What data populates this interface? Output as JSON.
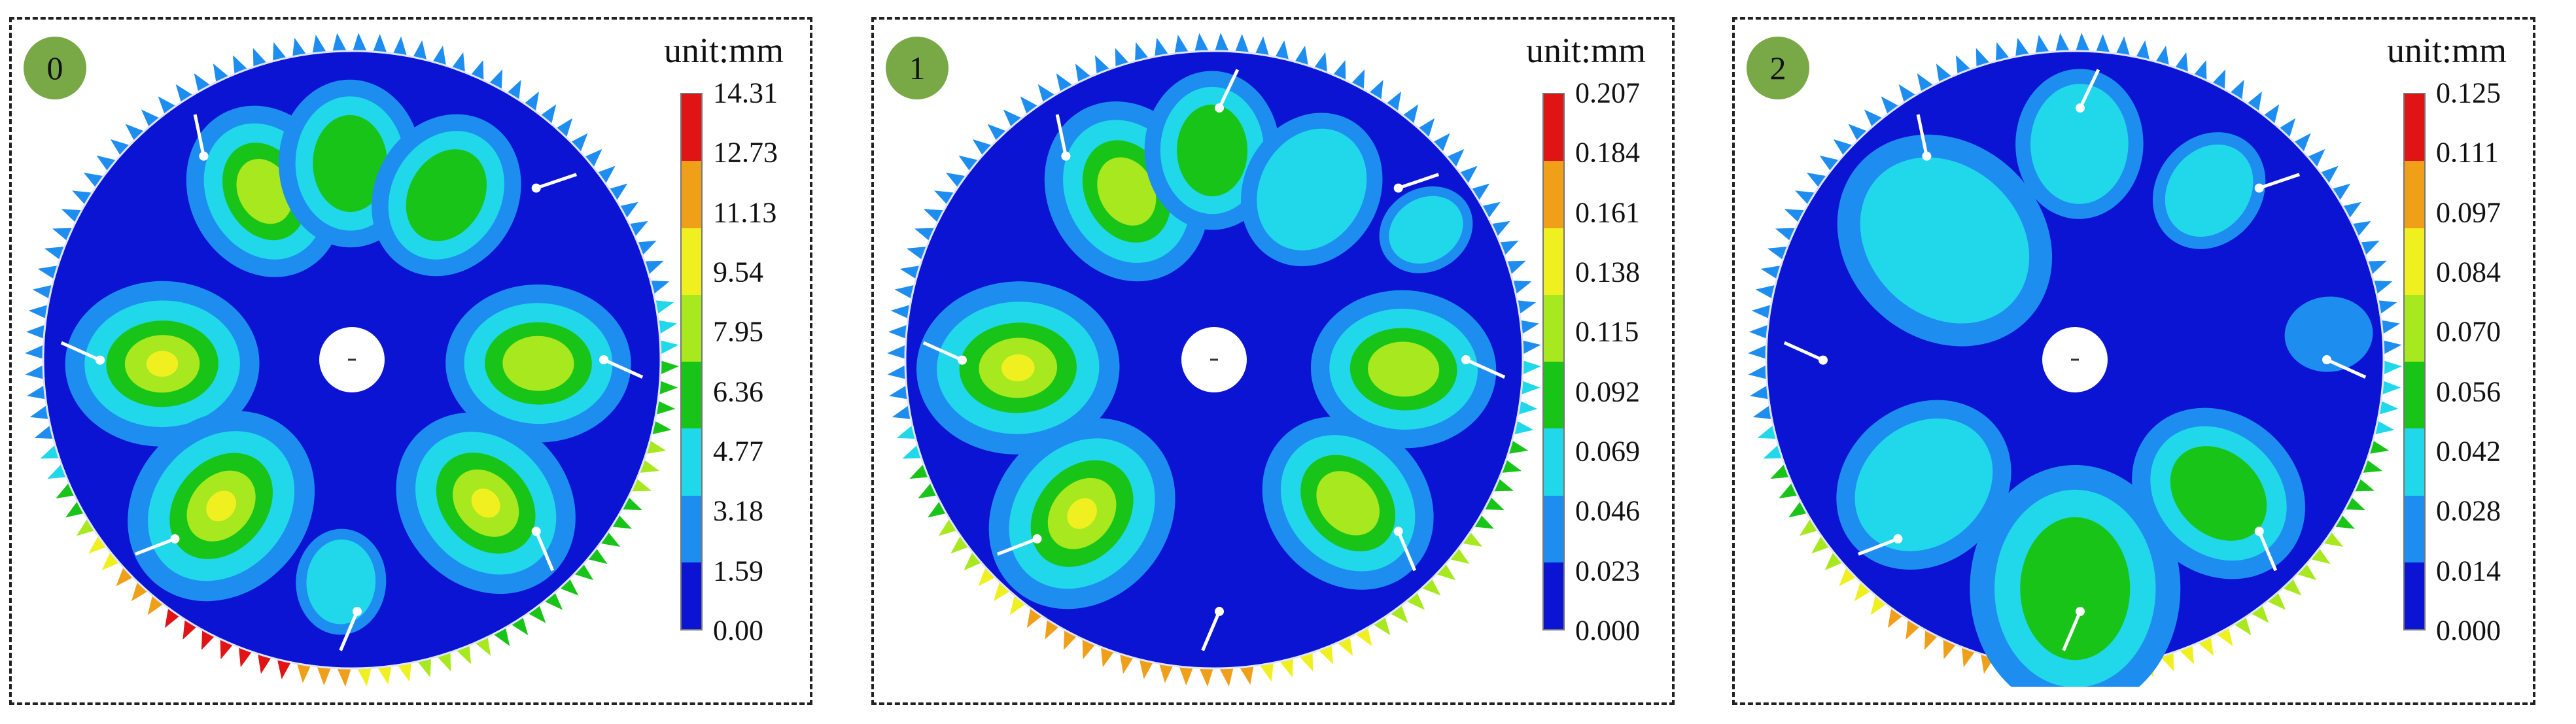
{
  "colors": {
    "badge": "#79a846",
    "scale": [
      "#0a14d2",
      "#1e8df0",
      "#20d8ea",
      "#19c419",
      "#a8e81e",
      "#f0f020",
      "#f0a018",
      "#e01414"
    ],
    "background": "#0a14d2",
    "hole": "#ffffff",
    "crack": "#ffffff"
  },
  "panels": [
    {
      "label": "0",
      "unit": "unit:mm",
      "ticks": [
        "14.31",
        "12.73",
        "11.13",
        "9.54",
        "7.95",
        "6.36",
        "4.77",
        "3.18",
        "1.59",
        "0.00"
      ],
      "max": 14.31
    },
    {
      "label": "1",
      "unit": "unit:mm",
      "ticks": [
        "0.207",
        "0.184",
        "0.161",
        "0.138",
        "0.115",
        "0.092",
        "0.069",
        "0.046",
        "0.023",
        "0.000"
      ],
      "max": 0.207
    },
    {
      "label": "2",
      "unit": "unit:mm",
      "ticks": [
        "0.125",
        "0.111",
        "0.097",
        "0.084",
        "0.070",
        "0.056",
        "0.042",
        "0.028",
        "0.014",
        "0.000"
      ],
      "max": 0.125
    }
  ]
}
